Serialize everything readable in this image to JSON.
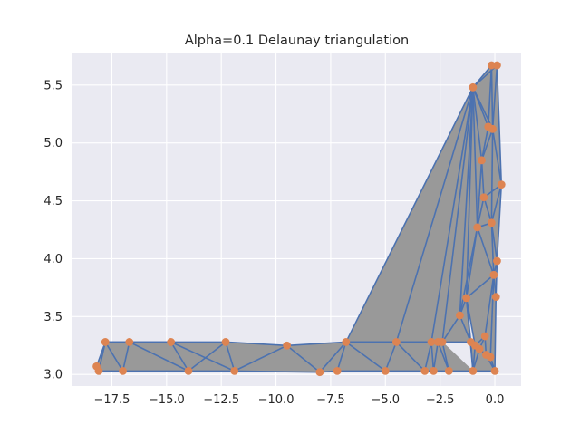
{
  "chart_data": {
    "type": "triangulation",
    "title": "Alpha=0.1 Delaunay triangulation",
    "xlabel": "",
    "ylabel": "",
    "xlim": [
      -19.3,
      1.2
    ],
    "ylim": [
      2.9,
      5.78
    ],
    "x_ticks": [
      -17.5,
      -15.0,
      -12.5,
      -10.0,
      -7.5,
      -5.0,
      -2.5,
      0.0
    ],
    "x_tick_labels": [
      "−17.5",
      "−15.0",
      "−12.5",
      "−10.0",
      "−7.5",
      "−5.0",
      "−2.5",
      "0.0"
    ],
    "y_ticks": [
      3.0,
      3.5,
      4.0,
      4.5,
      5.0,
      5.5
    ],
    "y_tick_labels": [
      "3.0",
      "3.5",
      "4.0",
      "4.5",
      "5.0",
      "5.5"
    ],
    "grid": true,
    "colors": {
      "background": "#eaeaf2",
      "grid": "#ffffff",
      "fill": "#999999",
      "edge": "#4c72b0",
      "point": "#dd8452"
    },
    "points": [
      [
        -18.2,
        3.07
      ],
      [
        -18.1,
        3.03
      ],
      [
        -17.8,
        3.28
      ],
      [
        -17.0,
        3.03
      ],
      [
        -16.7,
        3.28
      ],
      [
        -14.8,
        3.28
      ],
      [
        -14.0,
        3.03
      ],
      [
        -12.3,
        3.28
      ],
      [
        -11.9,
        3.03
      ],
      [
        -9.5,
        3.25
      ],
      [
        -8.0,
        3.02
      ],
      [
        -7.2,
        3.03
      ],
      [
        -6.8,
        3.28
      ],
      [
        -5.0,
        3.03
      ],
      [
        -4.5,
        3.28
      ],
      [
        -3.2,
        3.03
      ],
      [
        -2.9,
        3.28
      ],
      [
        -2.8,
        3.03
      ],
      [
        -2.6,
        3.28
      ],
      [
        -2.4,
        3.28
      ],
      [
        -2.1,
        3.03
      ],
      [
        -1.6,
        3.51
      ],
      [
        -1.3,
        3.66
      ],
      [
        -1.1,
        3.28
      ],
      [
        -1.0,
        3.03
      ],
      [
        -0.9,
        3.25
      ],
      [
        -0.8,
        4.27
      ],
      [
        -0.7,
        3.22
      ],
      [
        -0.6,
        4.85
      ],
      [
        -0.5,
        4.53
      ],
      [
        -0.45,
        3.33
      ],
      [
        -0.4,
        3.17
      ],
      [
        -0.3,
        5.14
      ],
      [
        -0.2,
        3.15
      ],
      [
        -0.15,
        4.31
      ],
      [
        -0.1,
        5.12
      ],
      [
        -0.05,
        3.86
      ],
      [
        0.0,
        3.03
      ],
      [
        0.05,
        3.67
      ],
      [
        0.1,
        3.98
      ],
      [
        0.3,
        4.64
      ],
      [
        -1.0,
        5.48
      ],
      [
        -0.15,
        5.67
      ],
      [
        0.1,
        5.67
      ]
    ],
    "edges": [
      [
        0,
        1
      ],
      [
        0,
        2
      ],
      [
        1,
        2
      ],
      [
        1,
        3
      ],
      [
        2,
        3
      ],
      [
        2,
        4
      ],
      [
        3,
        4
      ],
      [
        3,
        6
      ],
      [
        4,
        6
      ],
      [
        4,
        5
      ],
      [
        5,
        6
      ],
      [
        5,
        7
      ],
      [
        6,
        7
      ],
      [
        6,
        8
      ],
      [
        7,
        8
      ],
      [
        7,
        9
      ],
      [
        8,
        9
      ],
      [
        8,
        10
      ],
      [
        9,
        10
      ],
      [
        9,
        12
      ],
      [
        10,
        12
      ],
      [
        10,
        11
      ],
      [
        11,
        12
      ],
      [
        11,
        13
      ],
      [
        12,
        13
      ],
      [
        12,
        14
      ],
      [
        13,
        14
      ],
      [
        13,
        15
      ],
      [
        14,
        15
      ],
      [
        14,
        16
      ],
      [
        15,
        16
      ],
      [
        15,
        17
      ],
      [
        16,
        17
      ],
      [
        16,
        18
      ],
      [
        17,
        18
      ],
      [
        17,
        20
      ],
      [
        18,
        20
      ],
      [
        18,
        19
      ],
      [
        19,
        20
      ],
      [
        19,
        21
      ],
      [
        20,
        24
      ],
      [
        19,
        23
      ],
      [
        21,
        22
      ],
      [
        21,
        23
      ],
      [
        22,
        23
      ],
      [
        22,
        24
      ],
      [
        23,
        24
      ],
      [
        23,
        25
      ],
      [
        24,
        25
      ],
      [
        25,
        27
      ],
      [
        24,
        27
      ],
      [
        27,
        30
      ],
      [
        27,
        31
      ],
      [
        30,
        31
      ],
      [
        31,
        33
      ],
      [
        33,
        37
      ],
      [
        24,
        37
      ],
      [
        31,
        37
      ],
      [
        33,
        36
      ],
      [
        30,
        36
      ],
      [
        36,
        38
      ],
      [
        38,
        39
      ],
      [
        37,
        38
      ],
      [
        36,
        39
      ],
      [
        34,
        36
      ],
      [
        34,
        39
      ],
      [
        34,
        40
      ],
      [
        39,
        40
      ],
      [
        35,
        40
      ],
      [
        32,
        35
      ],
      [
        29,
        34
      ],
      [
        26,
        34
      ],
      [
        26,
        29
      ],
      [
        28,
        29
      ],
      [
        28,
        32
      ],
      [
        28,
        35
      ],
      [
        28,
        26
      ],
      [
        26,
        22
      ],
      [
        26,
        21
      ],
      [
        29,
        40
      ],
      [
        34,
        35
      ],
      [
        26,
        36
      ],
      [
        22,
        36
      ],
      [
        22,
        25
      ],
      [
        25,
        30
      ],
      [
        12,
        41
      ],
      [
        14,
        41
      ],
      [
        16,
        41
      ],
      [
        19,
        41
      ],
      [
        21,
        41
      ],
      [
        22,
        41
      ],
      [
        26,
        41
      ],
      [
        28,
        41
      ],
      [
        32,
        41
      ],
      [
        35,
        41
      ],
      [
        41,
        42
      ],
      [
        41,
        43
      ],
      [
        42,
        43
      ],
      [
        42,
        32
      ],
      [
        43,
        35
      ],
      [
        43,
        40
      ],
      [
        42,
        35
      ],
      [
        12,
        19
      ],
      [
        2,
        5
      ],
      [
        5,
        8
      ]
    ],
    "triangles": [
      [
        0,
        1,
        2
      ],
      [
        1,
        2,
        3
      ],
      [
        2,
        3,
        4
      ],
      [
        3,
        4,
        6
      ],
      [
        4,
        5,
        6
      ],
      [
        5,
        6,
        7
      ],
      [
        6,
        7,
        8
      ],
      [
        7,
        8,
        9
      ],
      [
        8,
        9,
        10
      ],
      [
        9,
        10,
        12
      ],
      [
        10,
        11,
        12
      ],
      [
        11,
        12,
        13
      ],
      [
        12,
        13,
        14
      ],
      [
        13,
        14,
        15
      ],
      [
        14,
        15,
        16
      ],
      [
        15,
        16,
        17
      ],
      [
        16,
        17,
        18
      ],
      [
        17,
        18,
        20
      ],
      [
        18,
        19,
        20
      ],
      [
        19,
        20,
        24
      ],
      [
        19,
        21,
        23
      ],
      [
        21,
        22,
        23
      ],
      [
        22,
        23,
        24
      ],
      [
        23,
        24,
        25
      ],
      [
        24,
        25,
        27
      ],
      [
        24,
        27,
        37
      ],
      [
        27,
        30,
        31
      ],
      [
        27,
        31,
        37
      ],
      [
        31,
        33,
        37
      ],
      [
        30,
        31,
        33
      ],
      [
        30,
        33,
        36
      ],
      [
        33,
        36,
        37
      ],
      [
        36,
        37,
        38
      ],
      [
        36,
        38,
        39
      ],
      [
        34,
        36,
        39
      ],
      [
        34,
        39,
        40
      ],
      [
        29,
        34,
        40
      ],
      [
        26,
        29,
        34
      ],
      [
        26,
        28,
        29
      ],
      [
        28,
        29,
        40
      ],
      [
        28,
        35,
        40
      ],
      [
        28,
        32,
        35
      ],
      [
        26,
        34,
        36
      ],
      [
        22,
        26,
        36
      ],
      [
        22,
        25,
        36
      ],
      [
        25,
        30,
        36
      ],
      [
        25,
        27,
        30
      ],
      [
        21,
        22,
        26
      ],
      [
        12,
        14,
        41
      ],
      [
        14,
        16,
        41
      ],
      [
        16,
        19,
        41
      ],
      [
        19,
        21,
        41
      ],
      [
        21,
        26,
        41
      ],
      [
        26,
        28,
        41
      ],
      [
        28,
        32,
        41
      ],
      [
        32,
        35,
        41
      ],
      [
        35,
        41,
        42
      ],
      [
        41,
        42,
        43
      ],
      [
        35,
        42,
        43
      ],
      [
        35,
        40,
        43
      ],
      [
        12,
        19,
        41
      ],
      [
        2,
        4,
        5
      ],
      [
        5,
        7,
        8
      ]
    ]
  }
}
